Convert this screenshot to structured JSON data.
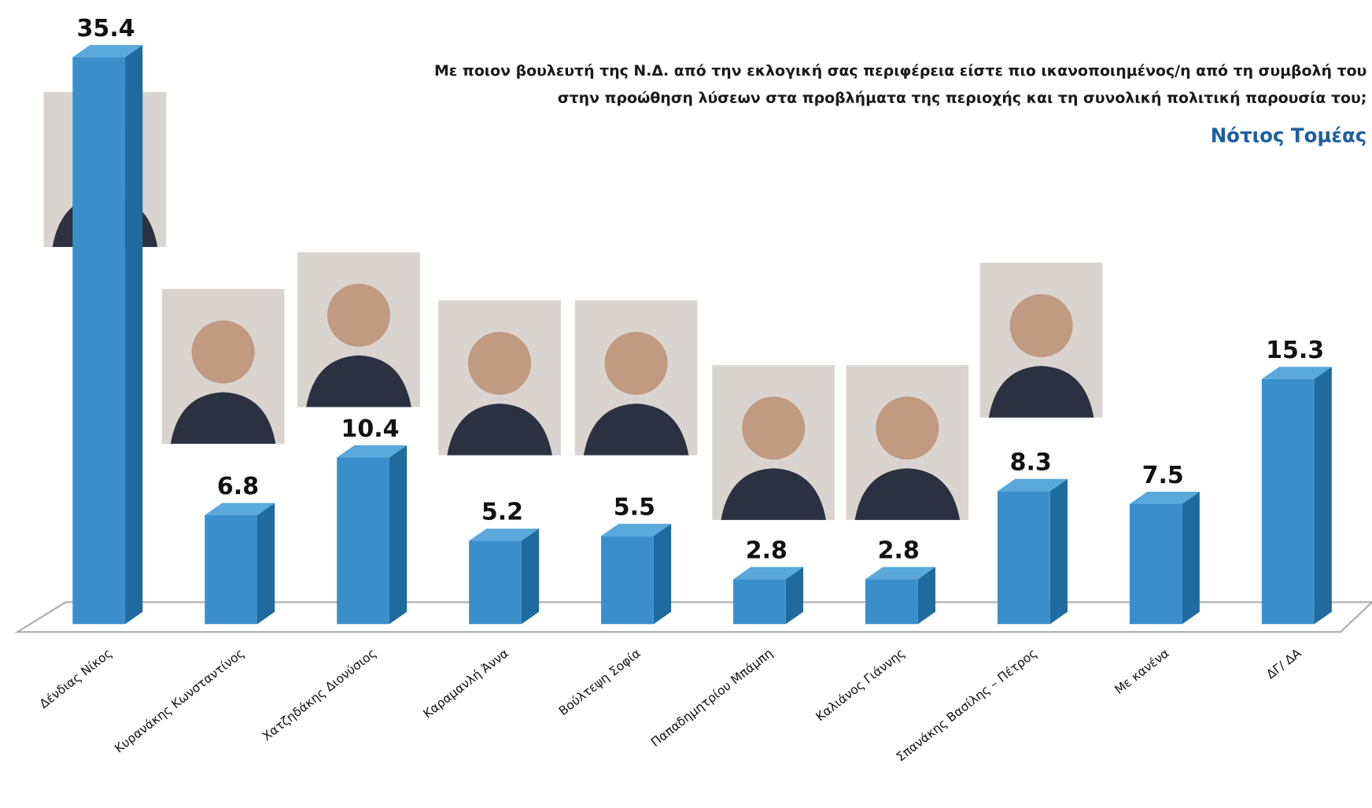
{
  "chart_data": {
    "type": "bar3d",
    "title": [
      "Με ποιον βουλευτή της Ν.Δ. από την εκλογική σας περιφέρεια είστε πιο ικανοποιημένος/η από τη συμβολή του",
      "στην προώθηση λύσεων στα προβλήματα της περιοχής και τη συνολική πολιτική παρουσία του;"
    ],
    "subtitle": "Νότιος Τομέας",
    "categories": [
      "Δένδιας Νίκος",
      "Κυρανάκης Κωνσταντίνος",
      "Χατζηδάκης Διονύσιος",
      "Καραμανλή Άννα",
      "Βούλτεψη Σοφία",
      "Παπαδημητρίου Μπάμπη",
      "Καλιάνος Γιάννης",
      "Σπανάκης Βασίλης – Πέτρος",
      "Με κανένα",
      "ΔΓ/ ΔΑ"
    ],
    "values": [
      35.4,
      6.8,
      10.4,
      5.2,
      5.5,
      2.8,
      2.8,
      8.3,
      7.5,
      15.3
    ],
    "color": "#3a8fcb"
  }
}
